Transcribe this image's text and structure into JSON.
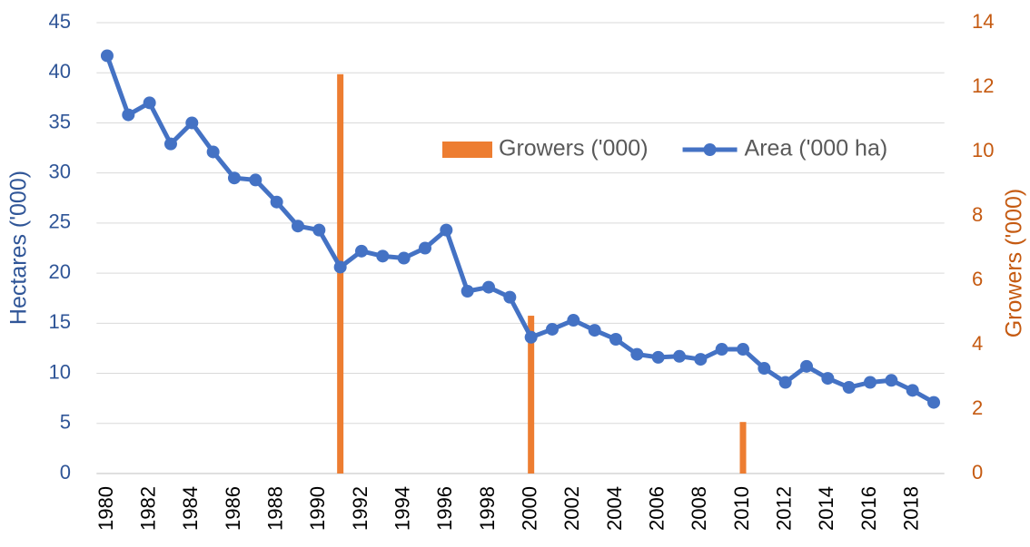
{
  "chart_data": {
    "type": "bar-line",
    "categories": [
      "1980",
      null,
      "1982",
      null,
      "1984",
      null,
      "1986",
      null,
      "1988",
      null,
      "1990",
      null,
      "1992",
      null,
      "1994",
      null,
      "1996",
      null,
      "1998",
      null,
      "2000",
      null,
      "2002",
      null,
      "2004",
      null,
      "2006",
      null,
      "2008",
      null,
      "2010",
      null,
      "2012",
      null,
      "2014",
      null,
      "2016",
      null,
      "2018",
      null
    ],
    "series": [
      {
        "name": "Growers ('000)",
        "color": "#ed7d31",
        "type": "bar",
        "axis": "y2",
        "values": [
          null,
          null,
          null,
          null,
          null,
          null,
          null,
          null,
          null,
          null,
          null,
          12.4,
          null,
          null,
          null,
          null,
          null,
          null,
          null,
          null,
          4.9,
          null,
          null,
          null,
          null,
          null,
          null,
          null,
          null,
          null,
          1.6,
          null,
          null,
          null,
          null,
          null,
          null,
          null,
          null,
          null
        ]
      },
      {
        "name": "Area ('000 ha)",
        "color": "#4472c4",
        "type": "line",
        "values": [
          41.7,
          35.8,
          37.0,
          32.9,
          35.0,
          32.1,
          29.5,
          29.3,
          27.1,
          24.7,
          24.3,
          20.6,
          22.2,
          21.7,
          21.5,
          22.5,
          24.3,
          18.2,
          18.6,
          17.6,
          13.6,
          14.4,
          15.3,
          14.3,
          13.4,
          11.9,
          11.6,
          11.7,
          11.4,
          12.4,
          12.4,
          10.5,
          9.1,
          10.7,
          9.5,
          8.6,
          9.1,
          9.3,
          8.3,
          7.1
        ]
      }
    ],
    "ylabel": "Hectares ('000)",
    "y2label": "Growers ('000)",
    "ylim": [
      0,
      45
    ],
    "yticks": [
      0,
      5,
      10,
      15,
      20,
      25,
      30,
      35,
      40,
      45
    ],
    "y2lim": [
      0,
      14
    ],
    "y2ticks": [
      0,
      2,
      4,
      6,
      8,
      10,
      12,
      14
    ],
    "grid": true,
    "legend": "top-right"
  }
}
